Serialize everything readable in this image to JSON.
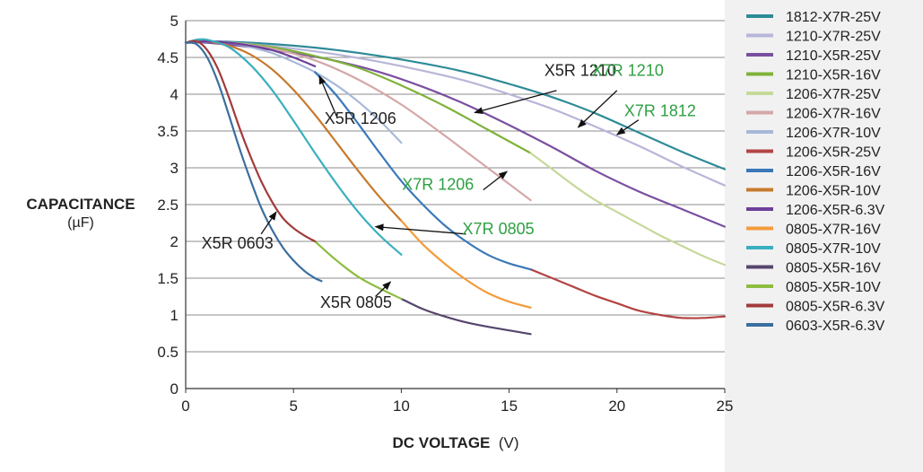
{
  "chart_data": {
    "type": "line",
    "title": "",
    "ylabel": "CAPACITANCE",
    "ylabel_unit": "(µF)",
    "xlabel": "DC VOLTAGE",
    "xlabel_unit": "(V)",
    "xlim": [
      0,
      25
    ],
    "ylim": [
      0,
      5
    ],
    "xticks": [
      "0",
      "5",
      "10",
      "15",
      "20",
      "25"
    ],
    "yticks": [
      "0",
      "0.5",
      "1",
      "1.5",
      "2",
      "2.5",
      "3",
      "3.5",
      "4",
      "4.5",
      "5"
    ],
    "grid": "horizontal",
    "legend_position": "right",
    "series": [
      {
        "name": "1812-X7R-25V",
        "color": "#2e8b97",
        "x": [
          0,
          1,
          3,
          5,
          7,
          9,
          11,
          13,
          15,
          17,
          19,
          21,
          23,
          25
        ],
        "y": [
          4.7,
          4.72,
          4.7,
          4.66,
          4.6,
          4.52,
          4.42,
          4.3,
          4.14,
          3.96,
          3.74,
          3.48,
          3.22,
          2.98
        ]
      },
      {
        "name": "1210-X7R-25V",
        "color": "#b8b6d8",
        "x": [
          0,
          1,
          3,
          5,
          7,
          9,
          11,
          13,
          15,
          17,
          19,
          21,
          23,
          25
        ],
        "y": [
          4.7,
          4.72,
          4.68,
          4.62,
          4.54,
          4.44,
          4.32,
          4.18,
          4.0,
          3.8,
          3.56,
          3.3,
          3.02,
          2.76
        ]
      },
      {
        "name": "1210-X5R-25V",
        "color": "#7a4fa0",
        "x": [
          0,
          1,
          3,
          5,
          7,
          9,
          11,
          13,
          15,
          17,
          19,
          21,
          23,
          25
        ],
        "y": [
          4.7,
          4.7,
          4.64,
          4.56,
          4.45,
          4.3,
          4.1,
          3.86,
          3.58,
          3.28,
          2.96,
          2.68,
          2.44,
          2.2
        ]
      },
      {
        "name": "1210-X5R-16V",
        "color": "#7fb239",
        "x": [
          0,
          1,
          2,
          4,
          6,
          8,
          10,
          12,
          14,
          16
        ],
        "y": [
          4.7,
          4.72,
          4.7,
          4.64,
          4.52,
          4.36,
          4.12,
          3.84,
          3.52,
          3.2
        ]
      },
      {
        "name": "1206-X7R-25V",
        "color": "#c5d99a",
        "x": [
          16,
          17,
          18,
          19,
          20,
          21,
          22,
          23,
          24,
          25
        ],
        "y": [
          3.2,
          2.98,
          2.76,
          2.56,
          2.4,
          2.24,
          2.08,
          1.94,
          1.8,
          1.68
        ]
      },
      {
        "name": "1206-X7R-16V",
        "color": "#d4a8a8",
        "x": [
          0,
          1,
          2,
          4,
          6,
          8,
          10,
          12,
          14,
          16
        ],
        "y": [
          4.7,
          4.72,
          4.7,
          4.62,
          4.46,
          4.2,
          3.86,
          3.44,
          3.0,
          2.56
        ]
      },
      {
        "name": "1206-X7R-10V",
        "color": "#a7b9d9",
        "x": [
          0,
          1,
          2,
          3,
          4,
          5,
          6,
          7,
          8,
          9,
          10
        ],
        "y": [
          4.7,
          4.72,
          4.7,
          4.64,
          4.56,
          4.44,
          4.3,
          4.12,
          3.9,
          3.64,
          3.34
        ]
      },
      {
        "name": "1206-X5R-25V",
        "color": "#b34444",
        "x": [
          16,
          17,
          18,
          19,
          20,
          21,
          22,
          23,
          24,
          25
        ],
        "y": [
          1.62,
          1.5,
          1.38,
          1.26,
          1.16,
          1.06,
          1.0,
          0.96,
          0.96,
          0.98
        ]
      },
      {
        "name": "1206-X5R-16V",
        "color": "#3a78b8",
        "x": [
          6,
          7,
          8,
          9,
          10,
          11,
          12,
          13,
          14,
          15,
          16
        ],
        "y": [
          4.3,
          3.98,
          3.6,
          3.2,
          2.82,
          2.5,
          2.22,
          2.0,
          1.82,
          1.7,
          1.62
        ]
      },
      {
        "name": "1206-X5R-10V",
        "color": "#c77a2c",
        "x": [
          0,
          0.5,
          1,
          2,
          3,
          4,
          5,
          6,
          7,
          8,
          9,
          10
        ],
        "y": [
          4.7,
          4.72,
          4.72,
          4.66,
          4.54,
          4.34,
          4.06,
          3.72,
          3.34,
          2.96,
          2.6,
          2.28
        ]
      },
      {
        "name": "1206-X5R-6.3V",
        "color": "#6c3f98",
        "x": [
          0,
          1,
          2,
          3,
          4,
          5,
          6
        ],
        "y": [
          4.7,
          4.72,
          4.7,
          4.66,
          4.6,
          4.5,
          4.38
        ]
      },
      {
        "name": "0805-X7R-16V",
        "color": "#f49b3c",
        "x": [
          10,
          11,
          12,
          13,
          14,
          15,
          16
        ],
        "y": [
          2.28,
          1.96,
          1.7,
          1.48,
          1.3,
          1.18,
          1.1
        ]
      },
      {
        "name": "0805-X7R-10V",
        "color": "#3aafbf",
        "x": [
          0,
          0.5,
          1,
          2,
          3,
          4,
          5,
          6,
          7,
          8,
          9,
          10
        ],
        "y": [
          4.7,
          4.74,
          4.74,
          4.64,
          4.4,
          4.06,
          3.64,
          3.2,
          2.78,
          2.4,
          2.08,
          1.82
        ]
      },
      {
        "name": "0805-X5R-16V",
        "color": "#56456e",
        "x": [
          10,
          11,
          12,
          13,
          14,
          15,
          16
        ],
        "y": [
          1.22,
          1.08,
          0.98,
          0.9,
          0.84,
          0.79,
          0.74
        ]
      },
      {
        "name": "0805-X5R-10V",
        "color": "#8cbd3f",
        "x": [
          6,
          7,
          8,
          9,
          10
        ],
        "y": [
          2.0,
          1.74,
          1.52,
          1.36,
          1.22
        ]
      },
      {
        "name": "0805-X5R-6.3V",
        "color": "#a23a3a",
        "x": [
          0,
          0.5,
          1,
          1.5,
          2,
          2.5,
          3,
          3.5,
          4,
          4.5,
          5,
          5.5,
          6
        ],
        "y": [
          4.7,
          4.72,
          4.6,
          4.34,
          3.96,
          3.54,
          3.16,
          2.82,
          2.54,
          2.32,
          2.18,
          2.08,
          2.0
        ]
      },
      {
        "name": "0603-X5R-6.3V",
        "color": "#3b6e9e",
        "x": [
          0,
          0.5,
          1,
          1.5,
          2,
          2.5,
          3,
          3.5,
          4,
          4.5,
          5,
          5.5,
          6,
          6.3
        ],
        "y": [
          4.7,
          4.68,
          4.5,
          4.16,
          3.72,
          3.26,
          2.84,
          2.46,
          2.16,
          1.92,
          1.74,
          1.6,
          1.5,
          1.46
        ]
      }
    ],
    "annotations": [
      {
        "text": "X5R 1210",
        "color": "#222222",
        "x": 18.3,
        "y": 4.25,
        "arrow_from": [
          17.2,
          4.05
        ],
        "arrow_to": [
          13.4,
          3.75
        ]
      },
      {
        "text": "X7R 1210",
        "color": "#2ea043",
        "x": 20.5,
        "y": 4.25,
        "arrow_from": [
          20.0,
          4.05
        ],
        "arrow_to": [
          18.2,
          3.55
        ]
      },
      {
        "text": "X7R 1812",
        "color": "#2ea043",
        "x": 22.0,
        "y": 3.7,
        "arrow_from": [
          21.0,
          3.65
        ],
        "arrow_to": [
          20.0,
          3.45
        ]
      },
      {
        "text": "X5R 1206",
        "color": "#222222",
        "x": 8.1,
        "y": 3.6,
        "arrow_from": [
          7.0,
          3.7
        ],
        "arrow_to": [
          6.2,
          4.25
        ]
      },
      {
        "text": "X7R 1206",
        "color": "#2ea043",
        "x": 11.7,
        "y": 2.7,
        "arrow_from": [
          13.8,
          2.7
        ],
        "arrow_to": [
          14.9,
          2.95
        ]
      },
      {
        "text": "X7R 0805",
        "color": "#2ea043",
        "x": 14.5,
        "y": 2.1,
        "arrow_from": [
          13.0,
          2.1
        ],
        "arrow_to": [
          8.8,
          2.2
        ]
      },
      {
        "text": "X5R 0603",
        "color": "#222222",
        "x": 2.4,
        "y": 1.9,
        "arrow_from": [
          3.5,
          2.1
        ],
        "arrow_to": [
          4.2,
          2.4
        ]
      },
      {
        "text": "X5R 0805",
        "color": "#222222",
        "x": 7.9,
        "y": 1.1,
        "arrow_from": [
          8.8,
          1.25
        ],
        "arrow_to": [
          9.5,
          1.45
        ]
      }
    ]
  }
}
